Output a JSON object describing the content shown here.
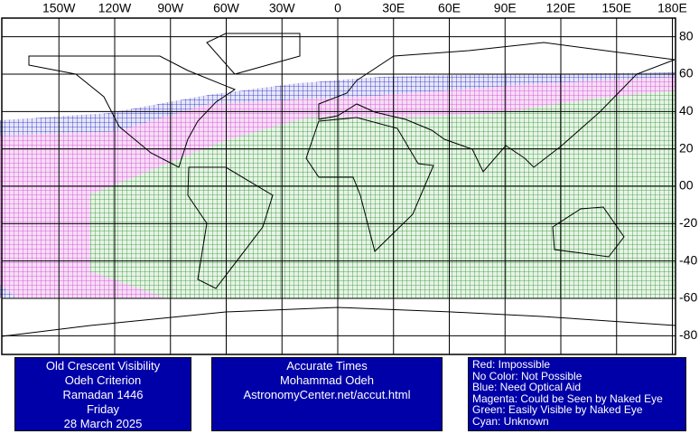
{
  "map": {
    "lon_ticks": [
      {
        "value": -150,
        "label": "150W"
      },
      {
        "value": -120,
        "label": "120W"
      },
      {
        "value": -90,
        "label": "90W"
      },
      {
        "value": -60,
        "label": "60W"
      },
      {
        "value": -30,
        "label": "30W"
      },
      0,
      {
        "value": 30,
        "label": "30E"
      },
      {
        "value": 60,
        "label": "60E"
      },
      {
        "value": 90,
        "label": "90E"
      },
      {
        "value": 120,
        "label": "120E"
      },
      {
        "value": 150,
        "label": "150E"
      },
      {
        "value": 180,
        "label": "180E"
      }
    ],
    "lat_ticks": [
      80,
      60,
      40,
      20,
      {
        "value": 0,
        "label": "00"
      },
      -20,
      -40,
      -60,
      -80
    ]
  },
  "panels": {
    "criterion": [
      "Old Crescent Visibility",
      "Odeh Criterion",
      "Ramadan 1446",
      "Friday",
      "28 March 2025"
    ],
    "times": [
      "Accurate Times",
      "Mohammad Odeh",
      "AstronomyCenter.net/accut.html"
    ],
    "legend": [
      "Red: Impossible",
      "No Color: Not Possible",
      "Blue: Need Optical Aid",
      "Magenta: Could be Seen by Naked Eye",
      "Green: Easily Visible by Naked Eye",
      "Cyan: Unknown"
    ]
  }
}
